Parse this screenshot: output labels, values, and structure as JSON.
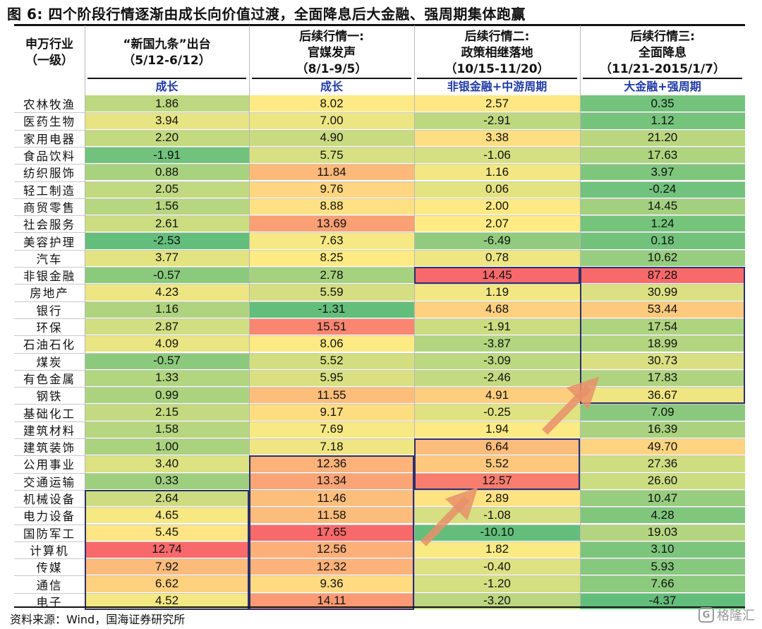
{
  "title": "图 6:  四个阶段行情逐渐由成长向价值过渡，全面降息后大金融、强周期集体跑赢",
  "source": "资料来源：Wind，国海证券研究所",
  "watermark": "格隆汇",
  "chart_data": {
    "type": "table",
    "row_header": [
      "申万行业",
      "（一级）"
    ],
    "columns": [
      {
        "title_lines": [
          "“新国九条”出台",
          "（5/12-6/12）"
        ],
        "tag": "成长"
      },
      {
        "title_lines": [
          "后续行情一:",
          "官媒发声",
          "（8/1-9/5）"
        ],
        "tag": "成长"
      },
      {
        "title_lines": [
          "后续行情二:",
          "政策相继落地",
          "（10/15-11/20）"
        ],
        "tag": "非银金融+中游周期"
      },
      {
        "title_lines": [
          "后续行情三:",
          "全面降息",
          "（11/21-2015/1/7）"
        ],
        "tag": "大金融+强周期"
      }
    ],
    "industries": [
      "农林牧渔",
      "医药生物",
      "家用电器",
      "食品饮料",
      "纺织服饰",
      "轻工制造",
      "商贸零售",
      "社会服务",
      "美容护理",
      "汽车",
      "非银金融",
      "房地产",
      "银行",
      "环保",
      "石油石化",
      "煤炭",
      "有色金属",
      "钢铁",
      "基础化工",
      "建筑材料",
      "建筑装饰",
      "公用事业",
      "交通运输",
      "机械设备",
      "电力设备",
      "国防军工",
      "计算机",
      "传媒",
      "通信",
      "电子"
    ],
    "values": [
      [
        "1.86",
        "8.02",
        "2.57",
        "0.35"
      ],
      [
        "3.94",
        "7.00",
        "-2.91",
        "1.12"
      ],
      [
        "2.20",
        "4.90",
        "3.38",
        "21.20"
      ],
      [
        "-1.91",
        "5.75",
        "-1.06",
        "17.63"
      ],
      [
        "0.88",
        "11.84",
        "1.16",
        "3.97"
      ],
      [
        "2.05",
        "9.76",
        "0.06",
        "-0.24"
      ],
      [
        "1.56",
        "8.88",
        "2.00",
        "14.45"
      ],
      [
        "2.61",
        "13.69",
        "2.07",
        "1.24"
      ],
      [
        "-2.53",
        "7.63",
        "-6.49",
        "0.18"
      ],
      [
        "3.77",
        "8.25",
        "0.78",
        "10.62"
      ],
      [
        "-0.57",
        "2.78",
        "14.45",
        "87.28"
      ],
      [
        "4.23",
        "5.59",
        "1.19",
        "30.99"
      ],
      [
        "1.16",
        "-1.31",
        "4.68",
        "53.44"
      ],
      [
        "2.87",
        "15.51",
        "-1.91",
        "17.54"
      ],
      [
        "4.09",
        "8.06",
        "-3.87",
        "18.99"
      ],
      [
        "-0.57",
        "5.52",
        "-3.09",
        "30.73"
      ],
      [
        "1.33",
        "5.95",
        "-2.46",
        "17.83"
      ],
      [
        "0.99",
        "11.55",
        "4.91",
        "36.67"
      ],
      [
        "2.15",
        "9.17",
        "-0.25",
        "7.09"
      ],
      [
        "1.58",
        "7.69",
        "1.94",
        "16.39"
      ],
      [
        "1.00",
        "7.18",
        "6.64",
        "49.70"
      ],
      [
        "3.40",
        "12.36",
        "5.52",
        "27.36"
      ],
      [
        "0.33",
        "13.34",
        "12.57",
        "26.60"
      ],
      [
        "2.64",
        "11.46",
        "2.89",
        "10.47"
      ],
      [
        "4.65",
        "11.58",
        "-1.08",
        "4.28"
      ],
      [
        "5.45",
        "17.65",
        "-10.10",
        "19.03"
      ],
      [
        "12.74",
        "12.56",
        "1.82",
        "3.10"
      ],
      [
        "7.92",
        "12.32",
        "-0.40",
        "5.93"
      ],
      [
        "6.62",
        "9.36",
        "-1.20",
        "7.66"
      ],
      [
        "4.52",
        "14.11",
        "-3.20",
        "-4.37"
      ]
    ],
    "color_scale": {
      "low": "#63be7b",
      "mid": "#ffeb84",
      "high": "#f8696b"
    }
  }
}
